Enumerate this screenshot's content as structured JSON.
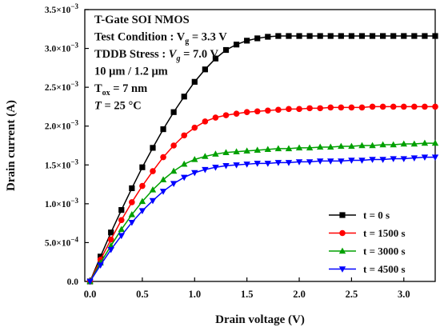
{
  "chart_data": {
    "type": "line",
    "xlabel": "Drain voltage (V)",
    "ylabel": "Drain current (A)",
    "xlim": [
      -0.05,
      3.3
    ],
    "ylim": [
      0,
      0.0035
    ],
    "xticks": [
      {
        "value": 0.0,
        "label": "0.0"
      },
      {
        "value": 0.5,
        "label": "0.5"
      },
      {
        "value": 1.0,
        "label": "1.0"
      },
      {
        "value": 1.5,
        "label": "1.5"
      },
      {
        "value": 2.0,
        "label": "2.0"
      },
      {
        "value": 2.5,
        "label": "2.5"
      },
      {
        "value": 3.0,
        "label": "3.0"
      }
    ],
    "yticks": [
      {
        "value": 0.0,
        "mant": "0.0",
        "exp": ""
      },
      {
        "value": 0.0005,
        "mant": "5.0×10",
        "exp": "−4"
      },
      {
        "value": 0.001,
        "mant": "1.0×10",
        "exp": "−3"
      },
      {
        "value": 0.0015,
        "mant": "1.5×10",
        "exp": "−3"
      },
      {
        "value": 0.002,
        "mant": "2.0×10",
        "exp": "−3"
      },
      {
        "value": 0.0025,
        "mant": "2.5×10",
        "exp": "−3"
      },
      {
        "value": 0.003,
        "mant": "3.0×10",
        "exp": "−3"
      },
      {
        "value": 0.0035,
        "mant": "3.5×10",
        "exp": "−3"
      }
    ],
    "grid": false,
    "legend_position": "bottom-right",
    "annotations": [
      {
        "parts": [
          {
            "t": "T-Gate SOI NMOS"
          }
        ]
      },
      {
        "parts": [
          {
            "t": "Test Condition : V"
          },
          {
            "t": "g",
            "sub": true
          },
          {
            "t": " = 3.3 V"
          }
        ]
      },
      {
        "parts": [
          {
            "t": "TDDB Stress : "
          },
          {
            "t": "V",
            "italic": true
          },
          {
            "t": "g",
            "sub": true,
            "italic": true
          },
          {
            "t": " = 7.0 V"
          }
        ]
      },
      {
        "parts": [
          {
            "t": "10 μm / 1.2 μm"
          }
        ]
      },
      {
        "parts": [
          {
            "t": "T"
          },
          {
            "t": "ox",
            "sub": true
          },
          {
            "t": " = 7 nm"
          }
        ]
      },
      {
        "parts": [
          {
            "t": "T",
            "italic": true
          },
          {
            "t": " = 25 °C"
          }
        ]
      }
    ],
    "x": [
      0.0,
      0.1,
      0.2,
      0.3,
      0.4,
      0.5,
      0.6,
      0.7,
      0.8,
      0.9,
      1.0,
      1.1,
      1.2,
      1.3,
      1.4,
      1.5,
      1.6,
      1.7,
      1.8,
      1.9,
      2.0,
      2.1,
      2.2,
      2.3,
      2.4,
      2.5,
      2.6,
      2.7,
      2.8,
      2.9,
      3.0,
      3.1,
      3.2,
      3.3
    ],
    "series": [
      {
        "name": "t = 0 s",
        "color": "#000000",
        "marker": "square",
        "values": [
          0.0,
          0.00032,
          0.00063,
          0.00092,
          0.0012,
          0.00147,
          0.00172,
          0.00196,
          0.00218,
          0.00238,
          0.00257,
          0.00273,
          0.00287,
          0.00298,
          0.00305,
          0.0031,
          0.00313,
          0.00315,
          0.00316,
          0.00316,
          0.00316,
          0.00316,
          0.00316,
          0.00316,
          0.00316,
          0.00316,
          0.00316,
          0.00316,
          0.00316,
          0.00316,
          0.00316,
          0.00316,
          0.00316,
          0.00316
        ]
      },
      {
        "name": "t = 1500 s",
        "color": "#ff0000",
        "marker": "circle",
        "values": [
          0.0,
          0.00028,
          0.00054,
          0.00079,
          0.00102,
          0.00123,
          0.00142,
          0.0016,
          0.00175,
          0.00188,
          0.00198,
          0.00206,
          0.00211,
          0.00214,
          0.00216,
          0.00218,
          0.00219,
          0.0022,
          0.00221,
          0.00222,
          0.00222,
          0.00223,
          0.00223,
          0.00224,
          0.00224,
          0.00224,
          0.00224,
          0.00225,
          0.00225,
          0.00225,
          0.00225,
          0.00225,
          0.00225,
          0.00225
        ]
      },
      {
        "name": "t = 3000 s",
        "color": "#00a000",
        "marker": "triangle",
        "values": [
          0.0,
          0.00024,
          0.00046,
          0.00067,
          0.00086,
          0.00103,
          0.00118,
          0.00131,
          0.00142,
          0.00151,
          0.00157,
          0.00161,
          0.00164,
          0.00166,
          0.00167,
          0.00168,
          0.00169,
          0.0017,
          0.00171,
          0.00171,
          0.00172,
          0.00172,
          0.00173,
          0.00173,
          0.00174,
          0.00174,
          0.00175,
          0.00175,
          0.00176,
          0.00176,
          0.00177,
          0.00177,
          0.00178,
          0.00178
        ]
      },
      {
        "name": "t = 4500 s",
        "color": "#0000ff",
        "marker": "triangle-down",
        "values": [
          0.0,
          0.00021,
          0.00041,
          0.00059,
          0.00076,
          0.00091,
          0.00104,
          0.00116,
          0.00126,
          0.00134,
          0.0014,
          0.00144,
          0.00147,
          0.00149,
          0.0015,
          0.00151,
          0.00152,
          0.00152,
          0.00153,
          0.00153,
          0.00154,
          0.00154,
          0.00155,
          0.00155,
          0.00155,
          0.00156,
          0.00156,
          0.00157,
          0.00157,
          0.00158,
          0.00158,
          0.00159,
          0.0016,
          0.0016
        ]
      }
    ]
  }
}
